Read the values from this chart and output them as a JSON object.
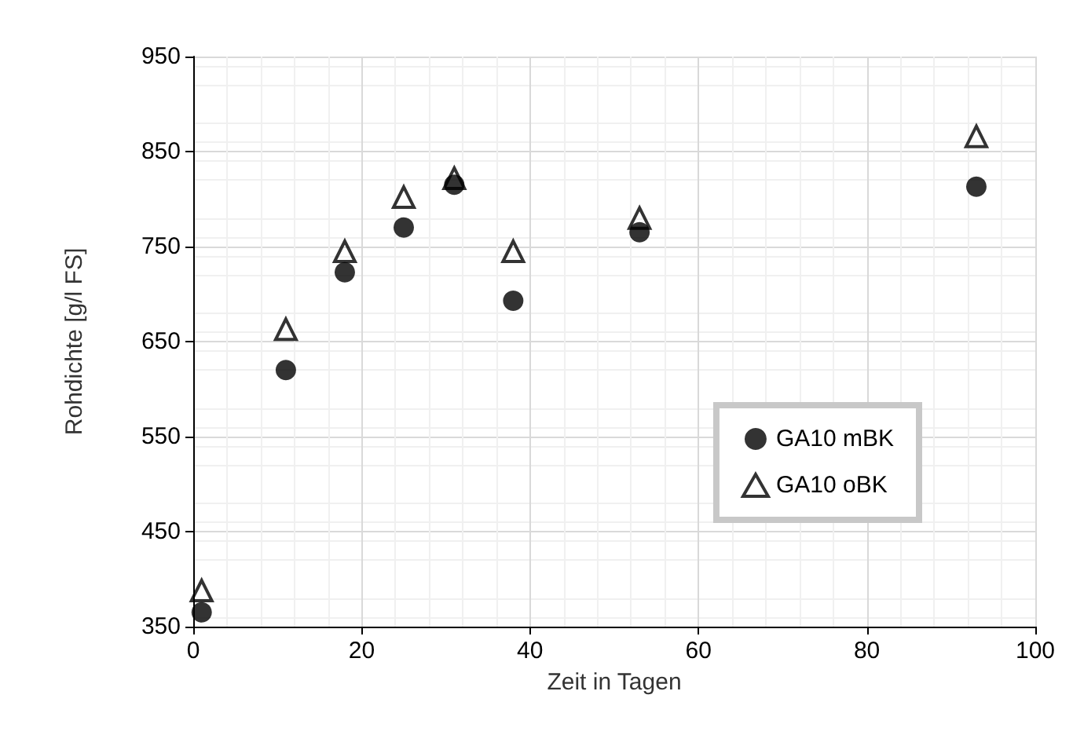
{
  "chart_data": {
    "type": "scatter",
    "xlabel": "Zeit in Tagen",
    "ylabel": "Rohdichte [g/l FS]",
    "xlim": [
      0,
      100
    ],
    "xticks": [
      0,
      20,
      40,
      60,
      80,
      100
    ],
    "ylim": [
      350,
      950
    ],
    "yticks": [
      350,
      450,
      550,
      650,
      750,
      850,
      950
    ],
    "grid": true,
    "legend": "right",
    "series": [
      {
        "name": "GA10 mBK",
        "color": "#000000",
        "marker": "circle",
        "x": [
          1,
          11,
          18,
          25,
          31,
          38,
          53,
          93
        ],
        "values": [
          365,
          620,
          723,
          770,
          815,
          693,
          765,
          813
        ]
      },
      {
        "name": "GA10 oBK",
        "color": "#000000",
        "marker": "triangle",
        "x": [
          1,
          11,
          18,
          25,
          31,
          38,
          53,
          93
        ],
        "values": [
          388,
          663,
          745,
          802,
          822,
          745,
          780,
          866
        ]
      }
    ]
  }
}
